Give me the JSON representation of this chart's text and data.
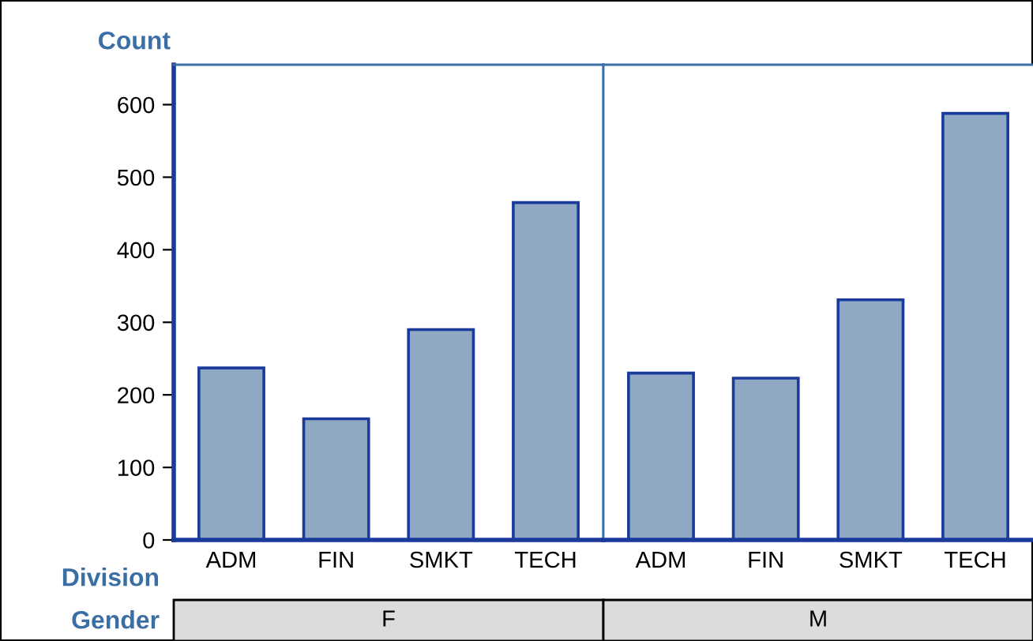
{
  "chart_data": [
    {
      "type": "bar",
      "xlabel": "F",
      "ylabel": "Count",
      "annotations": [
        "Division",
        "Gender"
      ],
      "categories": [
        "ADM",
        "FIN",
        "SMKT",
        "TECH"
      ],
      "values": [
        237,
        167,
        290,
        465
      ],
      "color": "#8fa9c4",
      "ylim": [
        0,
        655
      ],
      "yticks": [
        0,
        100,
        200,
        300,
        400,
        500,
        600
      ],
      "grid": false
    },
    {
      "type": "bar",
      "xlabel": "M",
      "categories": [
        "ADM",
        "FIN",
        "SMKT",
        "TECH"
      ],
      "values": [
        230,
        223,
        331,
        588
      ],
      "color": "#8fa9c4",
      "ylim": [
        0,
        655
      ],
      "yticks": [
        0,
        100,
        200,
        300,
        400,
        500,
        600
      ],
      "tick_labels": "x",
      "grid": false
    }
  ]
}
